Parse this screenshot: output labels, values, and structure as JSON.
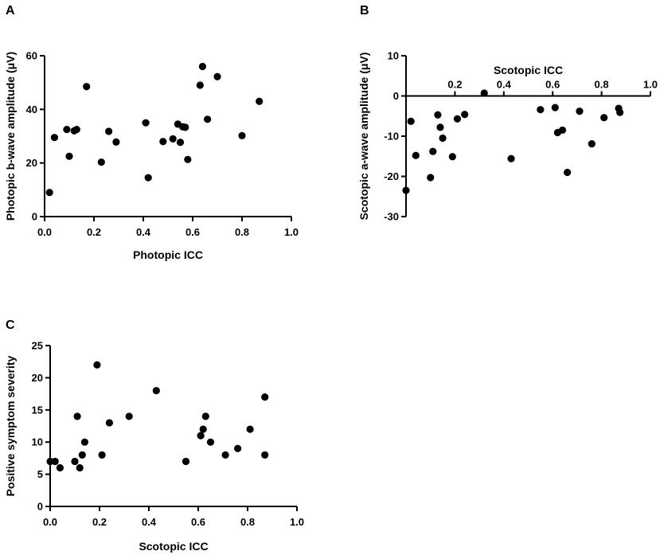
{
  "panels": {
    "A": {
      "letter": "A"
    },
    "B": {
      "letter": "B"
    },
    "C": {
      "letter": "C"
    }
  },
  "colors": {
    "marker": "#000000",
    "axis": "#000000",
    "background": "#ffffff"
  },
  "chart_data": [
    {
      "id": "A",
      "type": "scatter",
      "title": "",
      "xlabel": "Photopic ICC",
      "ylabel": "Photopic b-wave amplitude (μV)",
      "xlim": [
        0,
        1
      ],
      "ylim": [
        0,
        60
      ],
      "xticks": [
        0,
        0.2,
        0.4,
        0.6,
        0.8,
        1
      ],
      "xtick_labels": [
        "0.0",
        "0.2",
        "0.4",
        "0.6",
        "0.8",
        "1.0"
      ],
      "yticks": [
        0,
        20,
        40,
        60
      ],
      "ytick_labels": [
        "0",
        "20",
        "40",
        "60"
      ],
      "points": [
        [
          0.02,
          9
        ],
        [
          0.04,
          29.5
        ],
        [
          0.09,
          32.5
        ],
        [
          0.1,
          22.5
        ],
        [
          0.12,
          32
        ],
        [
          0.13,
          32.5
        ],
        [
          0.17,
          48.5
        ],
        [
          0.23,
          20.3
        ],
        [
          0.26,
          31.8
        ],
        [
          0.29,
          27.8
        ],
        [
          0.41,
          35
        ],
        [
          0.42,
          14.5
        ],
        [
          0.48,
          28
        ],
        [
          0.52,
          29
        ],
        [
          0.54,
          34.5
        ],
        [
          0.55,
          27.7
        ],
        [
          0.56,
          33.5
        ],
        [
          0.57,
          33.3
        ],
        [
          0.58,
          21.3
        ],
        [
          0.63,
          49
        ],
        [
          0.64,
          56
        ],
        [
          0.66,
          36.3
        ],
        [
          0.7,
          52.2
        ],
        [
          0.8,
          30.2
        ],
        [
          0.87,
          43
        ]
      ]
    },
    {
      "id": "B",
      "type": "scatter",
      "title": "",
      "xlabel": "Scotopic ICC",
      "ylabel": "Scotopic a-wave amplitude (μV)",
      "xlim": [
        0,
        1
      ],
      "ylim": [
        -30,
        10
      ],
      "xticks": [
        0.2,
        0.4,
        0.6,
        0.8,
        1
      ],
      "xtick_labels": [
        "0.2",
        "0.4",
        "0.6",
        "0.8",
        "1.0"
      ],
      "yticks": [
        -30,
        -20,
        -10,
        0,
        10
      ],
      "ytick_labels": [
        "-30",
        "-20",
        "-10",
        "0",
        "10"
      ],
      "points": [
        [
          0.0,
          -23.5
        ],
        [
          0.02,
          -6.3
        ],
        [
          0.04,
          -14.8
        ],
        [
          0.1,
          -20.3
        ],
        [
          0.11,
          -13.8
        ],
        [
          0.13,
          -4.7
        ],
        [
          0.14,
          -7.8
        ],
        [
          0.15,
          -10.5
        ],
        [
          0.19,
          -15.1
        ],
        [
          0.21,
          -5.7
        ],
        [
          0.24,
          -4.6
        ],
        [
          0.32,
          0.7
        ],
        [
          0.43,
          -15.6
        ],
        [
          0.55,
          -3.4
        ],
        [
          0.61,
          -2.9
        ],
        [
          0.62,
          -9.1
        ],
        [
          0.64,
          -8.5
        ],
        [
          0.66,
          -19
        ],
        [
          0.71,
          -3.8
        ],
        [
          0.76,
          -11.9
        ],
        [
          0.81,
          -5.4
        ],
        [
          0.87,
          -3.1
        ],
        [
          0.875,
          -4.1
        ]
      ]
    },
    {
      "id": "C",
      "type": "scatter",
      "title": "",
      "xlabel": "Scotopic ICC",
      "ylabel": "Positive symptom severity",
      "xlim": [
        0,
        1
      ],
      "ylim": [
        0,
        25
      ],
      "xticks": [
        0,
        0.2,
        0.4,
        0.6,
        0.8,
        1
      ],
      "xtick_labels": [
        "0.0",
        "0.2",
        "0.4",
        "0.6",
        "0.8",
        "1.0"
      ],
      "yticks": [
        0,
        5,
        10,
        15,
        20,
        25
      ],
      "ytick_labels": [
        "0",
        "5",
        "10",
        "15",
        "20",
        "25"
      ],
      "points": [
        [
          0.0,
          7
        ],
        [
          0.02,
          7
        ],
        [
          0.04,
          6
        ],
        [
          0.1,
          7
        ],
        [
          0.11,
          14
        ],
        [
          0.12,
          6
        ],
        [
          0.13,
          8
        ],
        [
          0.14,
          10
        ],
        [
          0.19,
          22
        ],
        [
          0.21,
          8
        ],
        [
          0.24,
          13
        ],
        [
          0.32,
          14
        ],
        [
          0.43,
          18
        ],
        [
          0.55,
          7
        ],
        [
          0.61,
          11
        ],
        [
          0.62,
          12
        ],
        [
          0.63,
          14
        ],
        [
          0.65,
          10
        ],
        [
          0.71,
          8
        ],
        [
          0.76,
          9
        ],
        [
          0.81,
          12
        ],
        [
          0.87,
          17
        ],
        [
          0.87,
          8
        ]
      ]
    }
  ]
}
